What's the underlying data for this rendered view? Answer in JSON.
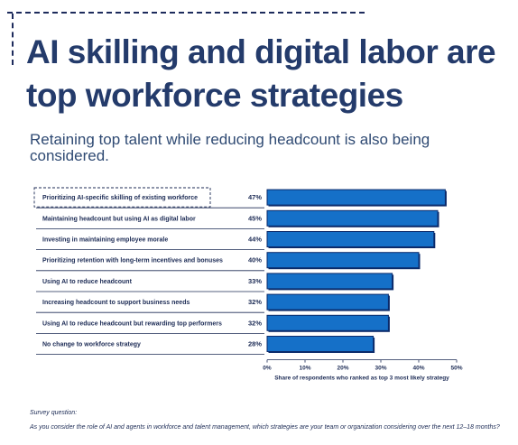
{
  "header": {
    "title": "AI skilling and digital labor are top workforce strategies",
    "subtitle": "Retaining top talent while reducing headcount is also being considered."
  },
  "footer": {
    "survey_label": "Survey question:",
    "survey_text": "As you consider the role of AI and agents in workforce and talent management, which strategies are your team or organization considering over the next 12–18 months?"
  },
  "chart_data": {
    "type": "bar",
    "orientation": "horizontal",
    "categories": [
      "Prioritizing AI-specific skilling of existing workforce",
      "Maintaining headcount but using AI as digital labor",
      "Investing in maintaining employee morale",
      "Prioritizing retention with long-term incentives and bonuses",
      "Using AI to reduce headcount",
      "Increasing headcount to support business needs",
      "Using AI to reduce headcount but rewarding top performers",
      "No change to workforce strategy"
    ],
    "values": [
      47,
      45,
      44,
      40,
      33,
      32,
      32,
      28
    ],
    "value_labels": [
      "47%",
      "45%",
      "44%",
      "40%",
      "33%",
      "32%",
      "32%",
      "28%"
    ],
    "xlim": [
      0,
      50
    ],
    "xticks": [
      "0%",
      "10%",
      "20%",
      "30%",
      "40%",
      "50%"
    ],
    "xlabel": "Share of respondents who ranked as top 3 most likely strategy",
    "bar_color": "#1570c8",
    "bar_border": "#0b2a6a",
    "grid": false,
    "legend": "none"
  }
}
